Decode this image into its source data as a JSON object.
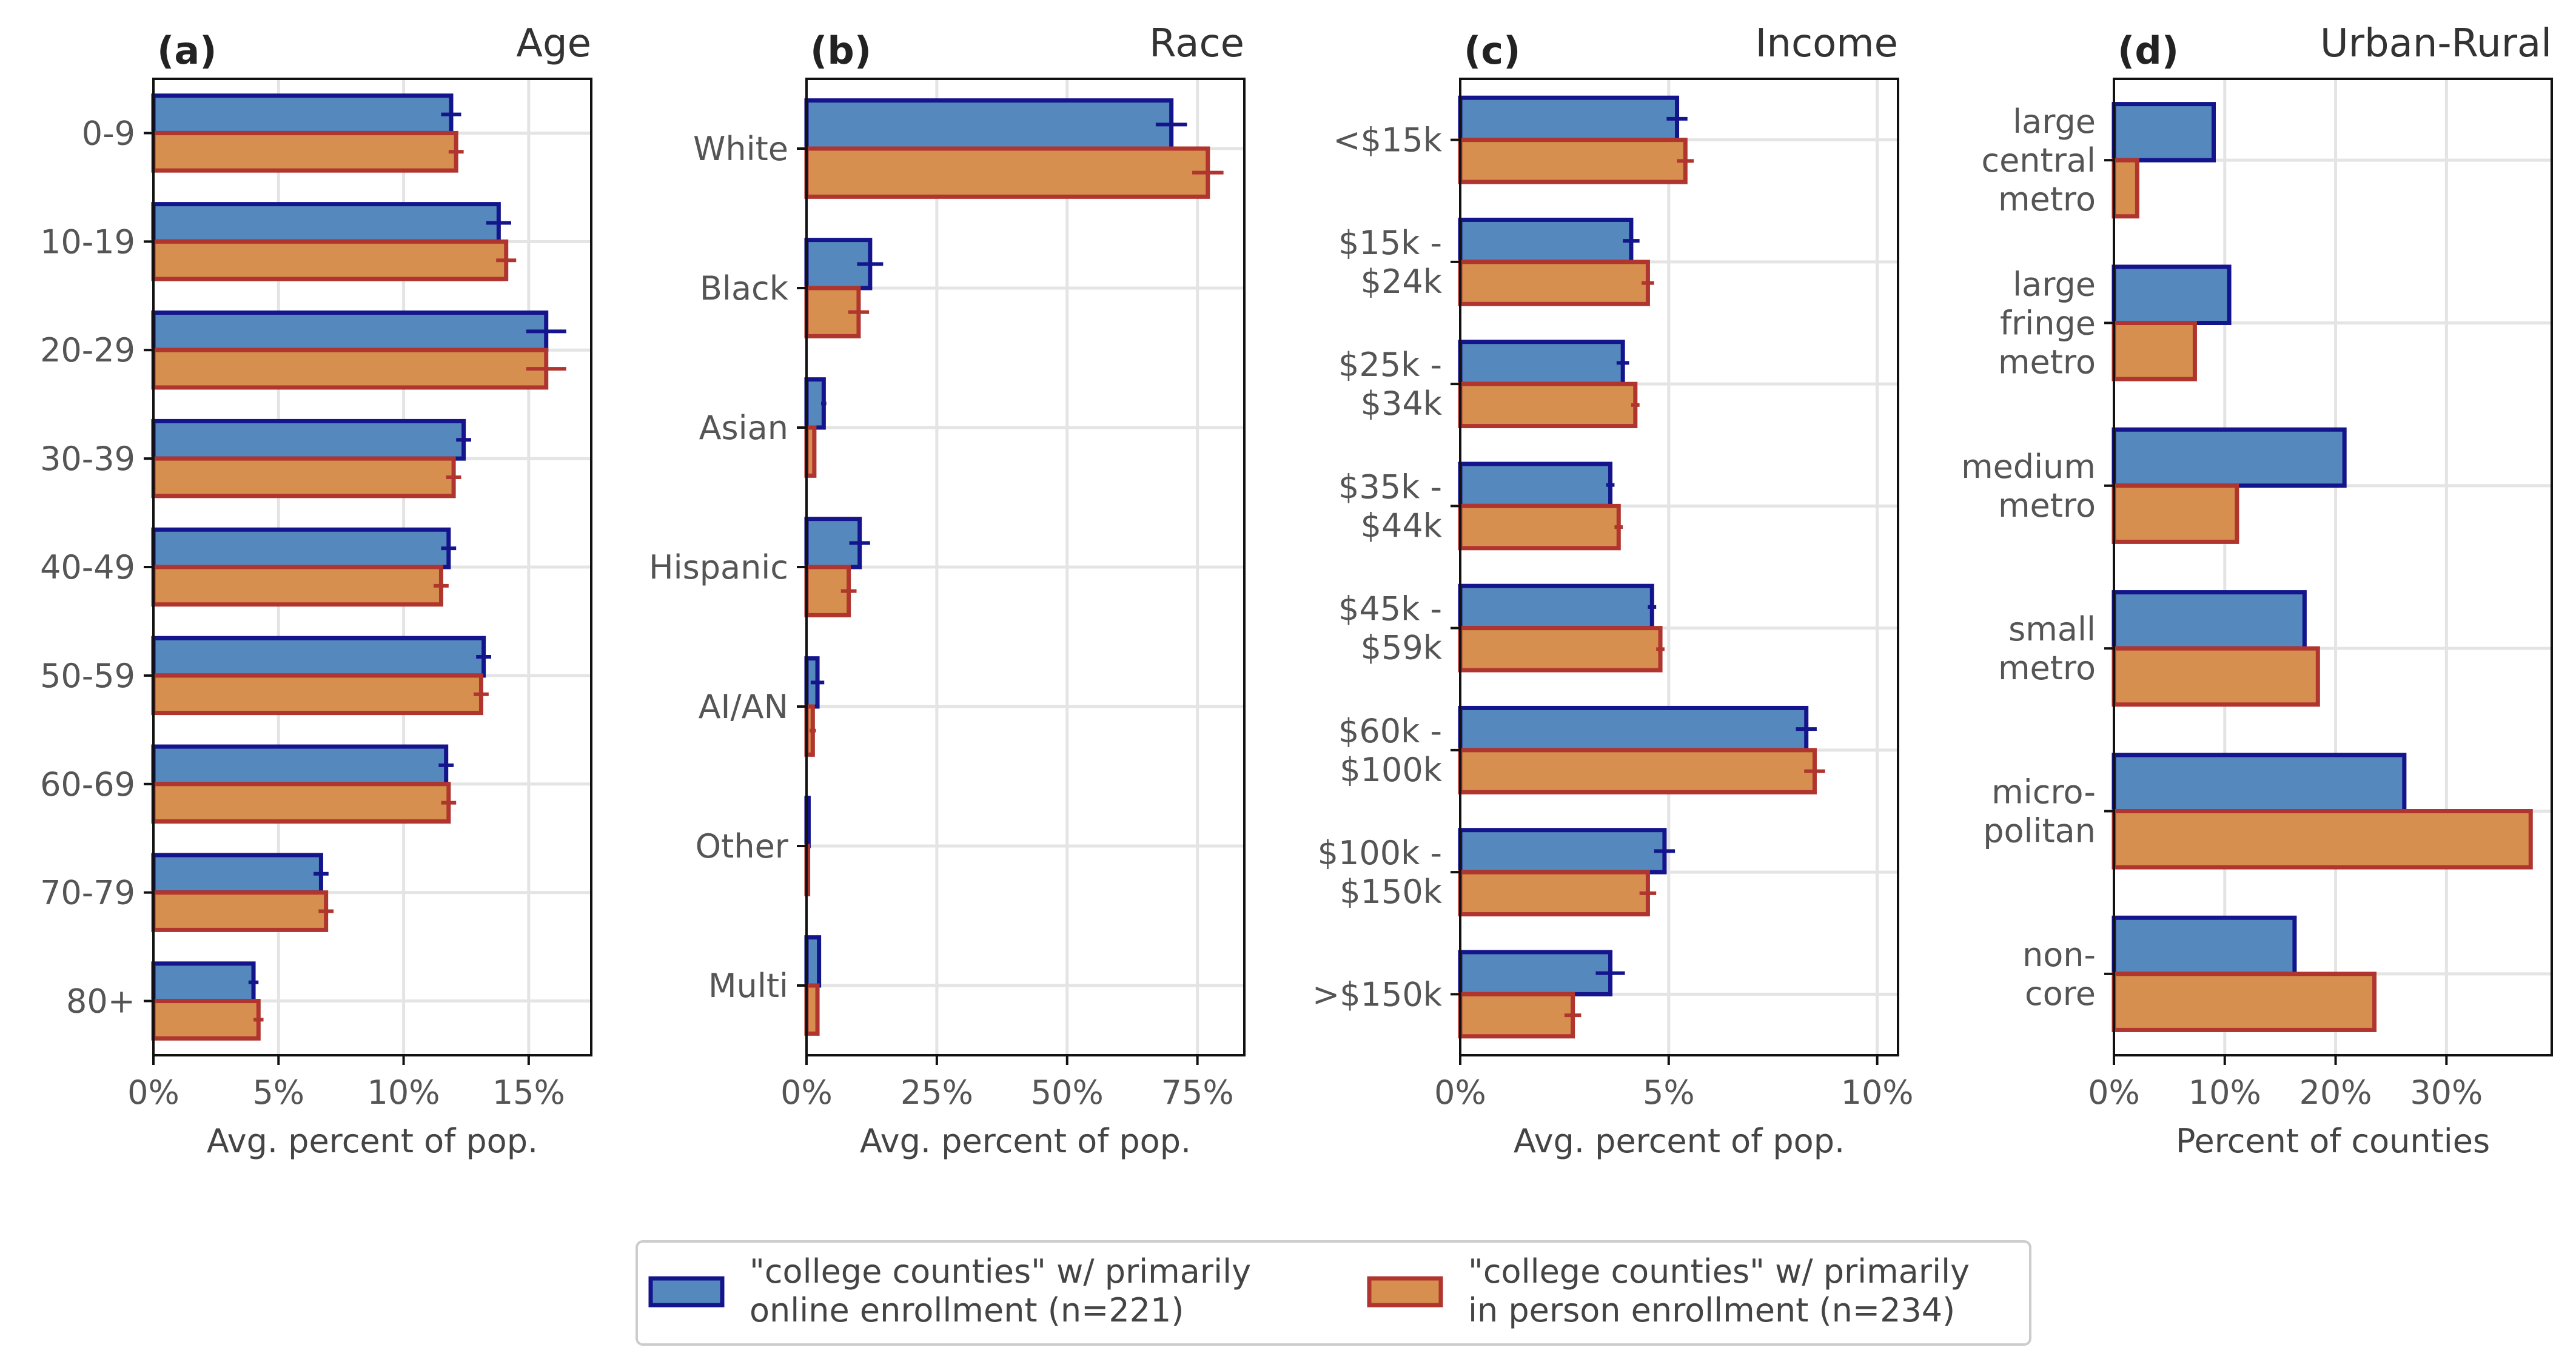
{
  "colors": {
    "online_fill": "#5589bd",
    "online_edge": "#14148c",
    "inperson_fill": "#d68f4f",
    "inperson_edge": "#b0352e",
    "grid": "#e4e4e4",
    "axis": "#111111"
  },
  "chart_data": [
    {
      "type": "bar",
      "orientation": "horizontal",
      "panel": "(a)",
      "title": "Age",
      "xlabel": "Avg. percent of pop.",
      "categories": [
        "0-9",
        "10-19",
        "20-29",
        "30-39",
        "40-49",
        "50-59",
        "60-69",
        "70-79",
        "80+"
      ],
      "series": [
        {
          "key": "online",
          "values": [
            11.9,
            13.8,
            15.7,
            12.4,
            11.8,
            13.2,
            11.7,
            6.7,
            4.0
          ],
          "errors": [
            0.4,
            0.5,
            0.8,
            0.3,
            0.3,
            0.3,
            0.3,
            0.3,
            0.2
          ]
        },
        {
          "key": "inperson",
          "values": [
            12.1,
            14.1,
            15.7,
            12.0,
            11.5,
            13.1,
            11.8,
            6.9,
            4.2
          ],
          "errors": [
            0.3,
            0.4,
            0.8,
            0.3,
            0.3,
            0.3,
            0.3,
            0.3,
            0.2
          ]
        }
      ],
      "xlim": [
        0,
        17.5
      ],
      "xticks": [
        0,
        5,
        10,
        15
      ],
      "xtick_labels": [
        "0%",
        "5%",
        "10%",
        "15%"
      ],
      "grid": true
    },
    {
      "type": "bar",
      "orientation": "horizontal",
      "panel": "(b)",
      "title": "Race",
      "xlabel": "Avg. percent of pop.",
      "categories": [
        "White",
        "Black",
        "Asian",
        "Hispanic",
        "AI/AN",
        "Other",
        "Multi"
      ],
      "series": [
        {
          "key": "online",
          "values": [
            70.0,
            12.2,
            3.3,
            10.2,
            2.1,
            0.4,
            2.4
          ],
          "errors": [
            3.0,
            2.5,
            0.5,
            2.0,
            1.3,
            0.1,
            0.3
          ]
        },
        {
          "key": "inperson",
          "values": [
            77.0,
            10.0,
            1.5,
            8.1,
            1.2,
            0.3,
            2.1
          ],
          "errors": [
            3.0,
            2.0,
            0.3,
            1.5,
            0.6,
            0.1,
            0.3
          ]
        }
      ],
      "xlim": [
        0,
        84
      ],
      "xticks": [
        0,
        25,
        50,
        75
      ],
      "xtick_labels": [
        "0%",
        "25%",
        "50%",
        "75%"
      ],
      "grid": true
    },
    {
      "type": "bar",
      "orientation": "horizontal",
      "panel": "(c)",
      "title": "Income",
      "xlabel": "Avg. percent of pop.",
      "categories": [
        "<$15k",
        "$15k - $24k",
        "$25k - $34k",
        "$35k - $44k",
        "$45k - $59k",
        "$60k - $100k",
        "$100k - $150k",
        ">$150k"
      ],
      "category_lines": [
        [
          "<$15k"
        ],
        [
          "$15k -",
          "$24k"
        ],
        [
          "$25k -",
          "$34k"
        ],
        [
          "$35k -",
          "$44k"
        ],
        [
          "$45k -",
          "$59k"
        ],
        [
          "$60k -",
          "$100k"
        ],
        [
          "$100k -",
          "$150k"
        ],
        [
          ">$150k"
        ]
      ],
      "series": [
        {
          "key": "online",
          "values": [
            5.2,
            4.1,
            3.9,
            3.6,
            4.6,
            8.3,
            4.9,
            3.6
          ],
          "errors": [
            0.25,
            0.2,
            0.15,
            0.1,
            0.1,
            0.25,
            0.25,
            0.35
          ]
        },
        {
          "key": "inperson",
          "values": [
            5.4,
            4.5,
            4.2,
            3.8,
            4.8,
            8.5,
            4.5,
            2.7
          ],
          "errors": [
            0.2,
            0.15,
            0.1,
            0.1,
            0.1,
            0.25,
            0.2,
            0.2
          ]
        }
      ],
      "xlim": [
        0,
        10.5
      ],
      "xticks": [
        0,
        5,
        10
      ],
      "xtick_labels": [
        "0%",
        "5%",
        "10%"
      ],
      "grid": true
    },
    {
      "type": "bar",
      "orientation": "horizontal",
      "panel": "(d)",
      "title": "Urban-Rural",
      "xlabel": "Percent of counties",
      "categories": [
        "large central metro",
        "large fringe metro",
        "medium metro",
        "small metro",
        "micro-politan",
        "non-core"
      ],
      "category_lines": [
        [
          "large",
          "central",
          "metro"
        ],
        [
          "large",
          "fringe",
          "metro"
        ],
        [
          "medium",
          "metro"
        ],
        [
          "small",
          "metro"
        ],
        [
          "micro-",
          "politan"
        ],
        [
          "non-",
          "core"
        ]
      ],
      "series": [
        {
          "key": "online",
          "values": [
            9.0,
            10.4,
            20.8,
            17.2,
            26.2,
            16.3
          ]
        },
        {
          "key": "inperson",
          "values": [
            2.1,
            7.3,
            11.1,
            18.4,
            37.6,
            23.5
          ]
        }
      ],
      "xlim": [
        0,
        39.5
      ],
      "xticks": [
        0,
        10,
        20,
        30
      ],
      "xtick_labels": [
        "0%",
        "10%",
        "20%",
        "30%"
      ],
      "grid": true
    }
  ],
  "legend": {
    "position": "bottom-center",
    "entries": [
      {
        "key": "online",
        "lines": [
          "\"college counties\" w/ primarily",
          "online enrollment (n=221)"
        ]
      },
      {
        "key": "inperson",
        "lines": [
          "\"college counties\" w/ primarily",
          "in person enrollment (n=234)"
        ]
      }
    ]
  }
}
